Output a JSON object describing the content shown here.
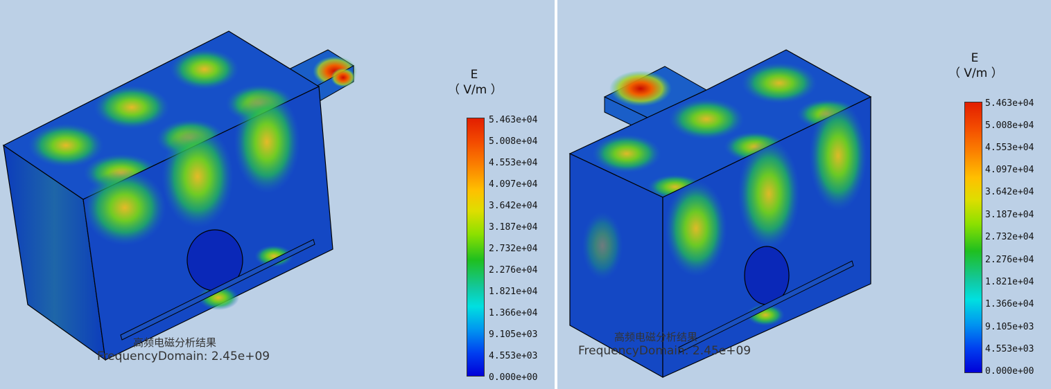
{
  "legend": {
    "quantity": "E",
    "unit": "（ V/m ）",
    "ticks": [
      "5.463e+04",
      "5.008e+04",
      "4.553e+04",
      "4.097e+04",
      "3.642e+04",
      "3.187e+04",
      "2.732e+04",
      "2.276e+04",
      "1.821e+04",
      "1.366e+04",
      "9.105e+03",
      "4.553e+03",
      "0.000e+00"
    ]
  },
  "caption": {
    "title": "高频电磁分析结果",
    "subtitle": "FrequencyDomain: 2.45e+09"
  },
  "colors": {
    "background": "#bcd0e6",
    "field_low": "#0a2cc8",
    "field_mid": "#2cc02c",
    "field_high": "#e21e00"
  }
}
